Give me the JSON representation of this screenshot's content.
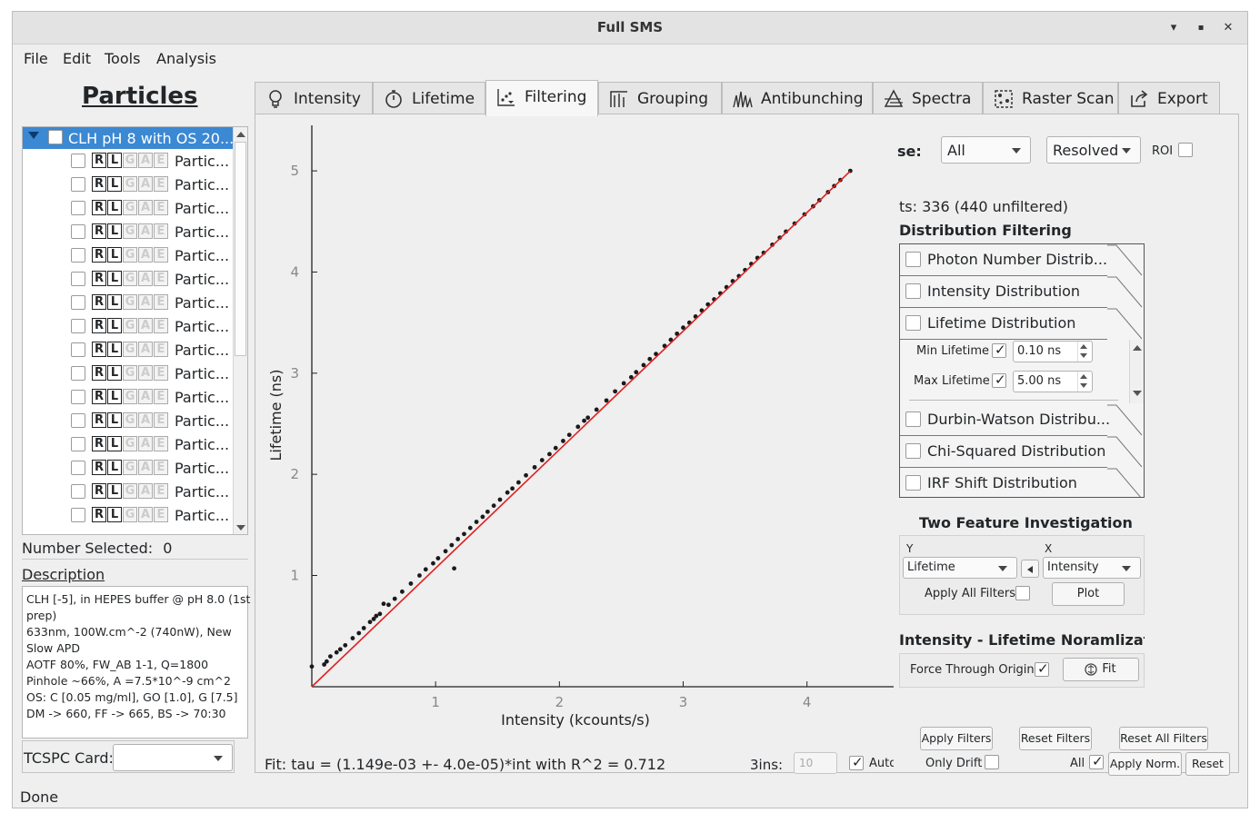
{
  "window": {
    "title": "Full SMS",
    "minimize": "▾",
    "maximize": "▪",
    "close": "✕"
  },
  "menu": [
    "File",
    "Edit",
    "Tools",
    "Analysis"
  ],
  "left": {
    "heading": "Particles",
    "tree_root": "CLH pH 8 with OS 20...",
    "tags": [
      "R",
      "L",
      "G",
      "A",
      "E"
    ],
    "rows": [
      "Partic...",
      "Partic...",
      "Partic...",
      "Partic...",
      "Partic...",
      "Partic...",
      "Partic...",
      "Partic...",
      "Partic...",
      "Partic...",
      "Partic...",
      "Partic...",
      "Partic...",
      "Partic...",
      "Partic...",
      "Partic..."
    ],
    "number_selected_label": "Number Selected:",
    "number_selected": "0",
    "description_heading": "Description",
    "description_lines": [
      "CLH [-5], in HEPES buffer @ pH 8.0 (1st",
      "prep)",
      "633nm, 100W.cm^-2 (740nW), New",
      "Slow APD",
      "AOTF 80%, FW_AB 1-1, Q=1800",
      "Pinhole ~66%, A =7.5*10^-9 cm^2",
      "OS: C [0.05 mg/ml], GO [1.0], G [7.5]",
      "DM -> 660, FF -> 665, BS -> 70:30"
    ],
    "tcspc_label": "TCSPC Card:",
    "tcspc_value": ""
  },
  "tabs": [
    {
      "label": "Intensity",
      "icon": "lightbulb-icon"
    },
    {
      "label": "Lifetime",
      "icon": "stopwatch-icon"
    },
    {
      "label": "Filtering",
      "icon": "filter-scatter-icon"
    },
    {
      "label": "Grouping",
      "icon": "grouping-icon"
    },
    {
      "label": "Antibunching",
      "icon": "antibunching-icon"
    },
    {
      "label": "Spectra",
      "icon": "prism-icon"
    },
    {
      "label": "Raster Scan",
      "icon": "raster-icon"
    },
    {
      "label": "Export",
      "icon": "export-icon"
    }
  ],
  "active_tab": "Filtering",
  "filtering": {
    "use_label": "se:",
    "use_value": "All",
    "mode_value": "Resolved",
    "roi_label": "ROI",
    "points_text": "ts: 336 (440 unfiltered)",
    "distribution_heading": "Distribution Filtering",
    "filters": [
      "Photon Number Distrib...",
      "Intensity Distribution",
      "Lifetime Distribution",
      "Durbin-Watson Distribu...",
      "Chi-Squared Distribution",
      "IRF Shift Distribution"
    ],
    "min_lifetime_label": "Min Lifetime",
    "min_lifetime_value": "0.10 ns",
    "max_lifetime_label": "Max Lifetime",
    "max_lifetime_value": "5.00 ns",
    "two_feature_heading": "Two Feature Investigation",
    "y_label": "Y",
    "x_label": "X",
    "y_value": "Lifetime",
    "x_value": "Intensity",
    "apply_all_filters_label": "Apply All Filters",
    "plot_button": "Plot",
    "norm_heading": "Intensity - Lifetime Noramlizatio",
    "force_origin_label": "Force Through Origin",
    "fit_button": "Fit",
    "apply_filters": "Apply Filters",
    "reset_filters": "Reset Filters",
    "reset_all_filters": "Reset All Filters",
    "only_drift": "Only Drift",
    "all_label": "All",
    "apply_norm": "Apply Norm.",
    "reset": "Reset",
    "fit_text": "Fit: tau = (1.149e-03 +- 4.0e-05)*int  with R^2 = 0.712",
    "bins_label": "3ins:",
    "bins_value": "10",
    "auto_label": "Auto"
  },
  "status": "Done",
  "colors": {
    "fit_line": "#e02020",
    "points": "#1a1a1a",
    "selection": "#3b88d3"
  },
  "chart_data": {
    "type": "scatter",
    "xlabel": "Intensity (kcounts/s)",
    "ylabel": "Lifetime (ns)",
    "xlim": [
      0,
      4.7
    ],
    "ylim": [
      -0.1,
      5.45
    ],
    "xticks": [
      1,
      2,
      3,
      4
    ],
    "yticks": [
      1,
      2,
      3,
      4,
      5
    ],
    "fit": {
      "slope": 1.149,
      "intercept": 0
    },
    "points": [
      [
        0.0,
        0.1
      ],
      [
        0.1,
        0.12
      ],
      [
        0.12,
        0.15
      ],
      [
        0.15,
        0.2
      ],
      [
        0.2,
        0.24
      ],
      [
        0.23,
        0.27
      ],
      [
        0.27,
        0.31
      ],
      [
        0.33,
        0.38
      ],
      [
        0.38,
        0.43
      ],
      [
        0.42,
        0.48
      ],
      [
        0.47,
        0.54
      ],
      [
        0.5,
        0.57
      ],
      [
        0.52,
        0.6
      ],
      [
        0.55,
        0.62
      ],
      [
        0.58,
        0.72
      ],
      [
        0.62,
        0.71
      ],
      [
        0.67,
        0.77
      ],
      [
        0.73,
        0.84
      ],
      [
        0.8,
        0.92
      ],
      [
        0.87,
        1.0
      ],
      [
        0.92,
        1.06
      ],
      [
        0.98,
        1.12
      ],
      [
        1.02,
        1.17
      ],
      [
        1.08,
        1.24
      ],
      [
        1.15,
        1.07
      ],
      [
        1.13,
        1.3
      ],
      [
        1.18,
        1.36
      ],
      [
        1.23,
        1.41
      ],
      [
        1.28,
        1.47
      ],
      [
        1.33,
        1.53
      ],
      [
        1.38,
        1.58
      ],
      [
        1.42,
        1.63
      ],
      [
        1.47,
        1.69
      ],
      [
        1.52,
        1.75
      ],
      [
        1.58,
        1.82
      ],
      [
        1.62,
        1.86
      ],
      [
        1.67,
        1.92
      ],
      [
        1.73,
        1.99
      ],
      [
        1.8,
        2.07
      ],
      [
        1.86,
        2.14
      ],
      [
        1.92,
        2.2
      ],
      [
        1.97,
        2.26
      ],
      [
        2.03,
        2.33
      ],
      [
        2.08,
        2.39
      ],
      [
        2.15,
        2.47
      ],
      [
        2.2,
        2.53
      ],
      [
        2.23,
        2.56
      ],
      [
        2.3,
        2.64
      ],
      [
        2.38,
        2.73
      ],
      [
        2.45,
        2.82
      ],
      [
        2.52,
        2.9
      ],
      [
        2.58,
        2.96
      ],
      [
        2.62,
        3.01
      ],
      [
        2.68,
        3.08
      ],
      [
        2.73,
        3.14
      ],
      [
        2.78,
        3.19
      ],
      [
        2.85,
        3.27
      ],
      [
        2.9,
        3.33
      ],
      [
        2.95,
        3.39
      ],
      [
        3.0,
        3.45
      ],
      [
        3.05,
        3.5
      ],
      [
        3.1,
        3.56
      ],
      [
        3.15,
        3.62
      ],
      [
        3.2,
        3.68
      ],
      [
        3.25,
        3.73
      ],
      [
        3.3,
        3.79
      ],
      [
        3.35,
        3.85
      ],
      [
        3.4,
        3.91
      ],
      [
        3.45,
        3.96
      ],
      [
        3.5,
        4.02
      ],
      [
        3.55,
        4.08
      ],
      [
        3.6,
        4.14
      ],
      [
        3.65,
        4.19
      ],
      [
        3.72,
        4.27
      ],
      [
        3.78,
        4.34
      ],
      [
        3.83,
        4.4
      ],
      [
        3.9,
        4.48
      ],
      [
        3.98,
        4.57
      ],
      [
        4.05,
        4.65
      ],
      [
        4.1,
        4.71
      ],
      [
        4.17,
        4.79
      ],
      [
        4.22,
        4.85
      ],
      [
        4.27,
        4.91
      ],
      [
        4.35,
        5.0
      ]
    ]
  }
}
